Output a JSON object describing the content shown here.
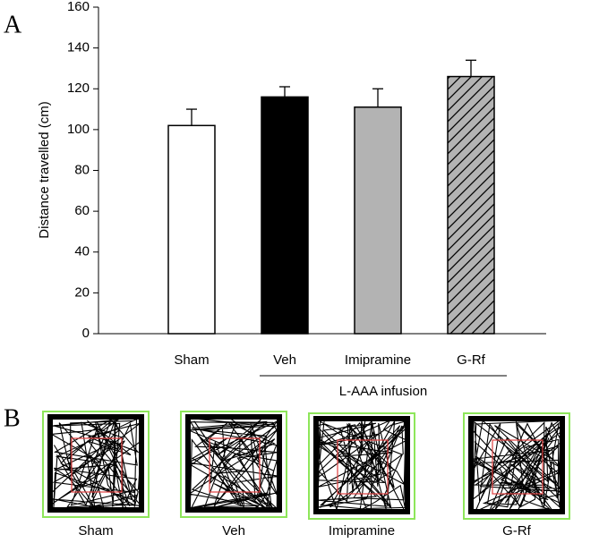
{
  "chart_data": {
    "type": "bar",
    "panel_label": "A",
    "ylabel": "Distance travelled (cm)",
    "categories": [
      "Sham",
      "Veh",
      "Imipramine",
      "G-Rf"
    ],
    "values": [
      102,
      116,
      111,
      126
    ],
    "errors": [
      8,
      5,
      9,
      8
    ],
    "colors": [
      "#ffffff",
      "#000000",
      "#b3b3b3",
      "#b3b3b3"
    ],
    "hatch": [
      false,
      false,
      false,
      true
    ],
    "group_label": "L-AAA infusion",
    "ylim": [
      0,
      160
    ],
    "yticks": [
      0,
      20,
      40,
      60,
      80,
      100,
      120,
      140,
      160
    ]
  },
  "panel_b": {
    "panel_label": "B",
    "labels": [
      "Sham",
      "Veh",
      "Imipramine",
      "G-Rf"
    ]
  }
}
